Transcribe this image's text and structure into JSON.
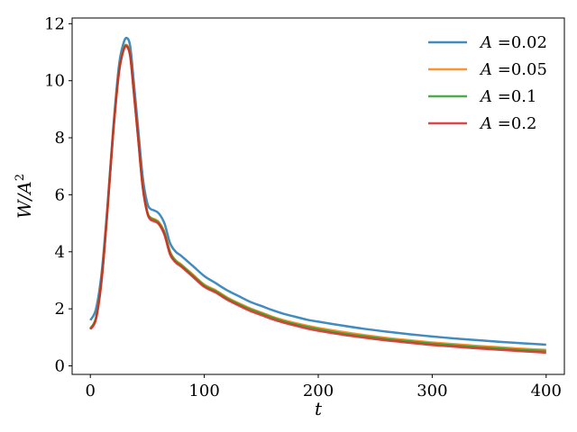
{
  "chart_data": {
    "type": "line",
    "title": "",
    "xlabel": "t",
    "ylabel_base": "W/A",
    "ylabel_exp": "2",
    "xlim": [
      -16,
      416
    ],
    "ylim": [
      -0.3,
      12.2
    ],
    "xticks": [
      0,
      100,
      200,
      300,
      400
    ],
    "yticks": [
      0,
      2,
      4,
      6,
      8,
      10,
      12
    ],
    "grid": false,
    "legend_placement": "top-right",
    "series": [
      {
        "name": "A =0.02",
        "var": "A",
        "value": "=0.02",
        "color": "#1f77b4",
        "x": [
          0,
          5,
          10,
          15,
          20,
          25,
          29,
          32,
          35,
          38,
          42,
          46,
          50,
          53,
          56,
          60,
          65,
          70,
          75,
          80,
          90,
          100,
          110,
          120,
          130,
          140,
          150,
          160,
          170,
          180,
          190,
          200,
          220,
          240,
          260,
          280,
          300,
          320,
          340,
          360,
          380,
          400
        ],
        "values": [
          1.6,
          2.0,
          3.3,
          5.6,
          8.3,
          10.5,
          11.3,
          11.5,
          11.2,
          10.0,
          8.3,
          6.6,
          5.7,
          5.5,
          5.45,
          5.35,
          5.0,
          4.3,
          4.0,
          3.85,
          3.5,
          3.15,
          2.9,
          2.65,
          2.45,
          2.25,
          2.1,
          1.95,
          1.82,
          1.72,
          1.62,
          1.55,
          1.42,
          1.3,
          1.2,
          1.11,
          1.03,
          0.96,
          0.9,
          0.84,
          0.79,
          0.74
        ]
      },
      {
        "name": "A =0.05",
        "var": "A",
        "value": "=0.05",
        "color": "#ff7f0e",
        "x": [
          0,
          5,
          10,
          15,
          20,
          25,
          29,
          32,
          35,
          38,
          42,
          46,
          50,
          53,
          56,
          60,
          65,
          70,
          75,
          80,
          90,
          100,
          110,
          120,
          130,
          140,
          150,
          160,
          170,
          180,
          190,
          200,
          220,
          240,
          260,
          280,
          300,
          320,
          340,
          360,
          380,
          400
        ],
        "values": [
          1.32,
          1.7,
          3.1,
          5.5,
          8.2,
          10.3,
          11.1,
          11.25,
          10.9,
          9.7,
          8.0,
          6.3,
          5.4,
          5.2,
          5.15,
          5.05,
          4.7,
          4.0,
          3.7,
          3.55,
          3.2,
          2.85,
          2.65,
          2.4,
          2.2,
          2.02,
          1.87,
          1.72,
          1.6,
          1.5,
          1.41,
          1.33,
          1.2,
          1.08,
          0.98,
          0.9,
          0.82,
          0.76,
          0.7,
          0.65,
          0.6,
          0.56
        ]
      },
      {
        "name": "A =0.1",
        "var": "A",
        "value": "=0.1",
        "color": "#2ca02c",
        "x": [
          0,
          5,
          10,
          15,
          20,
          25,
          29,
          32,
          35,
          38,
          42,
          46,
          50,
          53,
          56,
          60,
          65,
          70,
          75,
          80,
          90,
          100,
          110,
          120,
          130,
          140,
          150,
          160,
          170,
          180,
          190,
          200,
          220,
          240,
          260,
          280,
          300,
          320,
          340,
          360,
          380,
          400
        ],
        "values": [
          1.31,
          1.69,
          3.08,
          5.48,
          8.18,
          10.28,
          11.08,
          11.23,
          10.88,
          9.68,
          7.98,
          6.28,
          5.38,
          5.18,
          5.12,
          5.02,
          4.66,
          3.97,
          3.67,
          3.52,
          3.17,
          2.82,
          2.62,
          2.37,
          2.17,
          1.99,
          1.84,
          1.69,
          1.56,
          1.46,
          1.37,
          1.29,
          1.15,
          1.04,
          0.94,
          0.86,
          0.78,
          0.72,
          0.66,
          0.61,
          0.56,
          0.52
        ]
      },
      {
        "name": "A =0.2",
        "var": "A",
        "value": "=0.2",
        "color": "#d62728",
        "x": [
          0,
          5,
          10,
          15,
          20,
          25,
          29,
          32,
          35,
          38,
          42,
          46,
          50,
          53,
          56,
          60,
          65,
          70,
          75,
          80,
          90,
          100,
          110,
          120,
          130,
          140,
          150,
          160,
          170,
          180,
          190,
          200,
          220,
          240,
          260,
          280,
          300,
          320,
          340,
          360,
          380,
          400
        ],
        "values": [
          1.28,
          1.65,
          3.05,
          5.45,
          8.15,
          10.25,
          11.05,
          11.2,
          10.85,
          9.65,
          7.95,
          6.25,
          5.35,
          5.12,
          5.07,
          4.97,
          4.6,
          3.9,
          3.62,
          3.47,
          3.12,
          2.77,
          2.57,
          2.32,
          2.12,
          1.93,
          1.78,
          1.63,
          1.51,
          1.41,
          1.31,
          1.23,
          1.1,
          0.99,
          0.89,
          0.81,
          0.73,
          0.67,
          0.61,
          0.56,
          0.51,
          0.46
        ]
      }
    ]
  }
}
